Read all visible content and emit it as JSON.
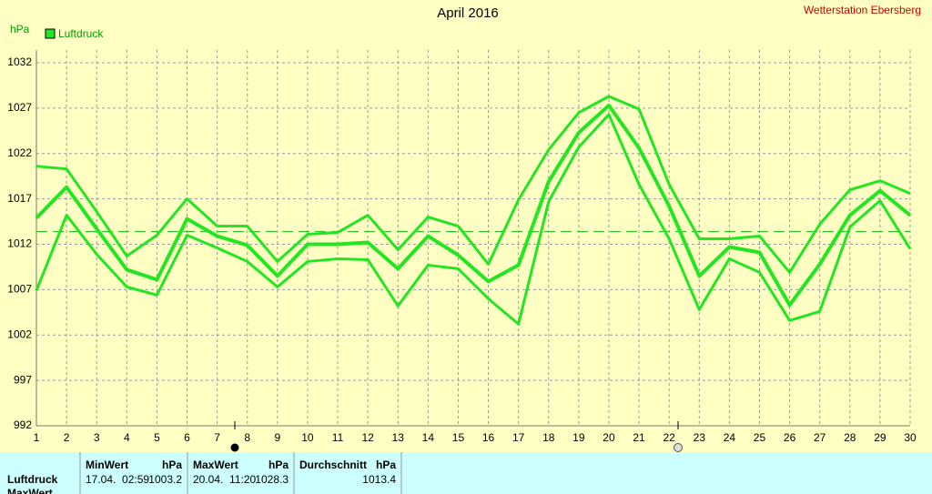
{
  "chart_data": {
    "type": "line",
    "title": "April 2016",
    "station": "Wetterstation Ebersberg",
    "ylabel": "hPa",
    "categories": [
      "1",
      "2",
      "3",
      "4",
      "5",
      "6",
      "7",
      "8",
      "9",
      "10",
      "11",
      "12",
      "13",
      "14",
      "15",
      "16",
      "17",
      "18",
      "19",
      "20",
      "21",
      "22",
      "23",
      "24",
      "25",
      "26",
      "27",
      "28",
      "29",
      "30"
    ],
    "series": [
      {
        "color": "#22e622",
        "values": [
          1020.6,
          1020.3,
          1015.6,
          1010.7,
          1013.0,
          1017.0,
          1014.0,
          1014.0,
          1010.1,
          1013.1,
          1013.3,
          1015.2,
          1011.4,
          1015.0,
          1014.0,
          1009.8,
          1016.9,
          1022.4,
          1026.5,
          1028.3,
          1026.9,
          1018.6,
          1012.6,
          1012.6,
          1012.9,
          1008.9,
          1014.2,
          1018.0,
          1019.0,
          1017.6
        ]
      },
      {
        "name": "Luftdruck",
        "color": "#22e622",
        "values": [
          1014.9,
          1018.3,
          1013.7,
          1009.2,
          1008.1,
          1014.8,
          1012.9,
          1011.9,
          1008.5,
          1012.0,
          1012.0,
          1012.2,
          1009.3,
          1012.9,
          1010.8,
          1007.9,
          1009.7,
          1018.9,
          1024.3,
          1027.3,
          1022.6,
          1016.2,
          1008.5,
          1011.7,
          1011.1,
          1005.3,
          1009.8,
          1015.2,
          1017.9,
          1015.2
        ]
      },
      {
        "color": "#22e622",
        "values": [
          1006.9,
          1015.2,
          1010.9,
          1007.3,
          1006.4,
          1013.0,
          1011.6,
          1010.1,
          1007.3,
          1010.1,
          1010.4,
          1010.3,
          1005.2,
          1009.7,
          1009.3,
          1006.0,
          1003.2,
          1016.7,
          1022.7,
          1026.3,
          1018.6,
          1012.6,
          1004.8,
          1010.4,
          1008.9,
          1003.6,
          1004.6,
          1013.9,
          1016.8,
          1011.5
        ]
      }
    ],
    "ylim": [
      992,
      1033.4
    ],
    "yticks": [
      992,
      997,
      1002,
      1007,
      1012,
      1017,
      1022,
      1027,
      1032
    ],
    "grid": true,
    "legend": "top-left"
  },
  "stats": {
    "row_label": "Luftdruck",
    "next_row": "MaxWert",
    "columns": [
      {
        "header": "MinWert",
        "unit": "hPa",
        "time": "17.04.  02:59",
        "value": 1003.2
      },
      {
        "header": "MaxWert",
        "unit": "hPa",
        "time": "20.04.  11:20",
        "value": 1028.3
      },
      {
        "header": "Durchschnitt",
        "unit": "hPa",
        "value": 1013.4
      }
    ]
  }
}
